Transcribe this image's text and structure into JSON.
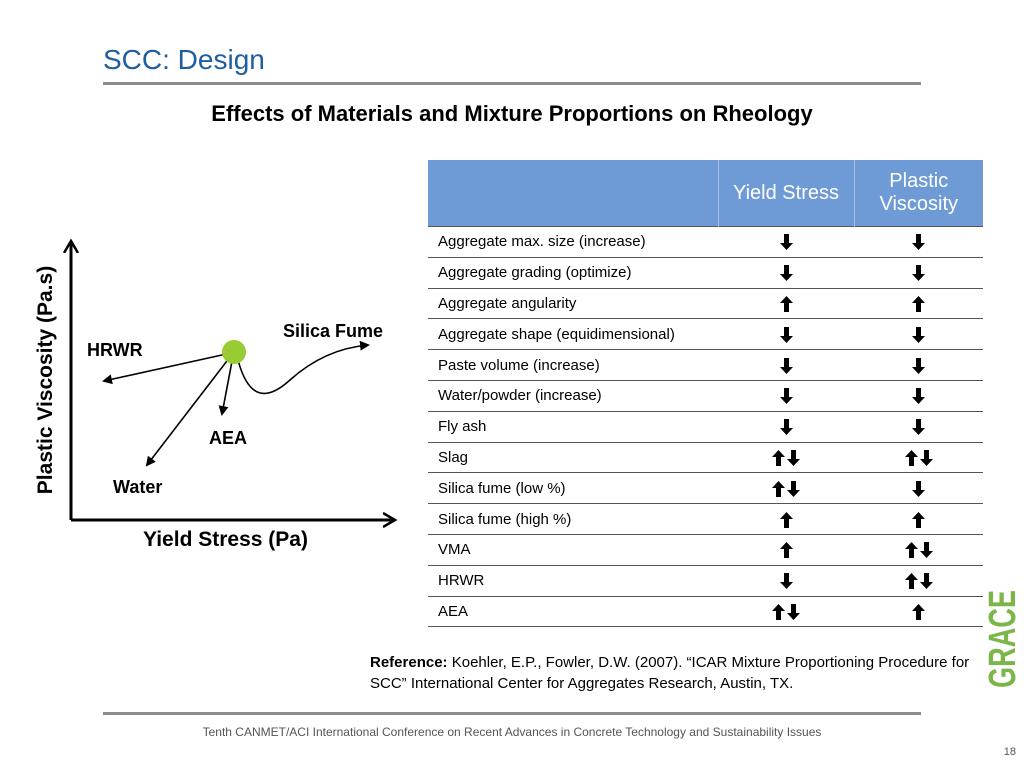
{
  "slide": {
    "title": "SCC: Design",
    "subtitle": "Effects of Materials and Mixture Proportions on Rheology",
    "footer": "Tenth CANMET/ACI International Conference on Recent Advances in Concrete Technology and Sustainability Issues",
    "page_number": "18",
    "logo_text": "GRACE"
  },
  "diagram": {
    "y_axis_label": "Plastic Viscosity (Pa.s)",
    "x_axis_label": "Yield Stress (Pa)",
    "labels": {
      "silica_fume": "Silica Fume",
      "hrwr": "HRWR",
      "aea": "AEA",
      "water": "Water"
    },
    "colors": {
      "origin_dot": "#99CC33"
    }
  },
  "table": {
    "headers": [
      "",
      "Yield Stress",
      "Plastic Viscosity"
    ],
    "header_color": "#6E9BD5",
    "rows": [
      {
        "item": "Aggregate max. size (increase)",
        "yield_stress": [
          "down"
        ],
        "plastic_viscosity": [
          "down"
        ]
      },
      {
        "item": "Aggregate grading (optimize)",
        "yield_stress": [
          "down"
        ],
        "plastic_viscosity": [
          "down"
        ]
      },
      {
        "item": "Aggregate angularity",
        "yield_stress": [
          "up"
        ],
        "plastic_viscosity": [
          "up"
        ]
      },
      {
        "item": "Aggregate shape (equidimensional)",
        "yield_stress": [
          "down"
        ],
        "plastic_viscosity": [
          "down"
        ]
      },
      {
        "item": "Paste volume (increase)",
        "yield_stress": [
          "down"
        ],
        "plastic_viscosity": [
          "down"
        ]
      },
      {
        "item": "Water/powder (increase)",
        "yield_stress": [
          "down"
        ],
        "plastic_viscosity": [
          "down"
        ]
      },
      {
        "item": "Fly ash",
        "yield_stress": [
          "down"
        ],
        "plastic_viscosity": [
          "down"
        ]
      },
      {
        "item": "Slag",
        "yield_stress": [
          "up",
          "down"
        ],
        "plastic_viscosity": [
          "up",
          "down"
        ]
      },
      {
        "item": "Silica fume (low %)",
        "yield_stress": [
          "up",
          "down"
        ],
        "plastic_viscosity": [
          "down"
        ]
      },
      {
        "item": "Silica fume (high %)",
        "yield_stress": [
          "up"
        ],
        "plastic_viscosity": [
          "up"
        ]
      },
      {
        "item": "VMA",
        "yield_stress": [
          "up"
        ],
        "plastic_viscosity": [
          "up",
          "down"
        ]
      },
      {
        "item": "HRWR",
        "yield_stress": [
          "down"
        ],
        "plastic_viscosity": [
          "up",
          "down"
        ]
      },
      {
        "item": "AEA",
        "yield_stress": [
          "up",
          "down"
        ],
        "plastic_viscosity": [
          "up"
        ]
      }
    ]
  },
  "reference": {
    "label": "Reference:",
    "text": "Koehler, E.P., Fowler, D.W. (2007). “ICAR Mixture Proportioning Procedure for SCC” International Center for Aggregates Research, Austin, TX."
  }
}
